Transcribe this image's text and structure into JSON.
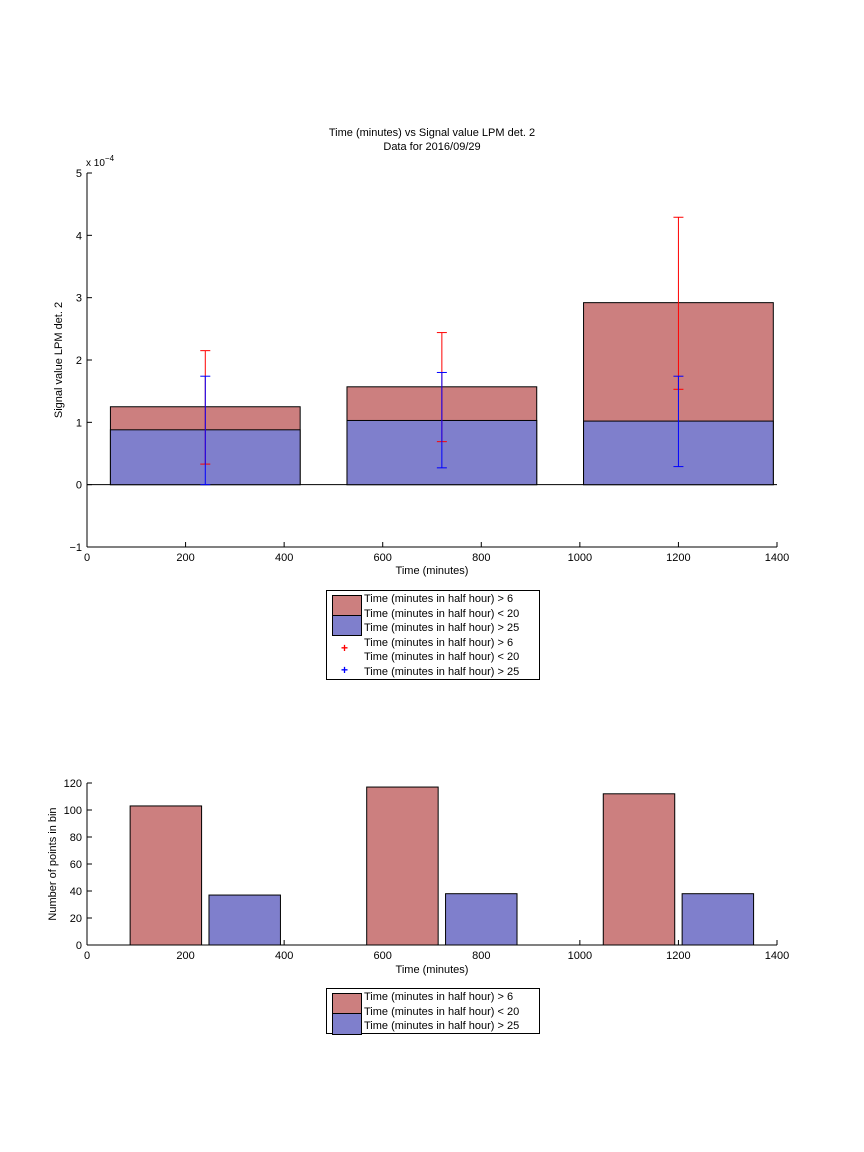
{
  "chart_data": [
    {
      "type": "bar",
      "title": "Time (minutes) vs Signal value LPM det. 2",
      "subtitle": "Data for 2016/09/29",
      "xlabel": "Time (minutes)",
      "ylabel": "Signal value LPM det. 2",
      "y_exponent_label": "x 10",
      "y_exponent_power": "−4",
      "xlim": [
        0,
        1400
      ],
      "ylim": [
        -1,
        5
      ],
      "x_ticks": [
        "0",
        "200",
        "400",
        "600",
        "800",
        "1000",
        "1200",
        "1400"
      ],
      "y_ticks": [
        "−1",
        "0",
        "1",
        "2",
        "3",
        "4",
        "5"
      ],
      "bar_centers": [
        240,
        720,
        1200
      ],
      "bar_width": 385,
      "series": [
        {
          "name": "Time (minutes in half hour) > 6\nTime (minutes in half hour) < 20",
          "color": "#cc7f7f",
          "values": [
            1.25,
            1.57,
            2.92
          ],
          "err_low": [
            0.33,
            0.69,
            1.53
          ],
          "err_high": [
            2.15,
            2.44,
            4.29
          ],
          "err_color": "#ff0000"
        },
        {
          "name": "Time (minutes in half hour) > 25",
          "color": "#7f7fcc",
          "values": [
            0.88,
            1.03,
            1.02
          ],
          "err_low": [
            0.0,
            0.27,
            0.29
          ],
          "err_high": [
            1.74,
            1.8,
            1.74
          ],
          "err_color": "#0000ff"
        }
      ],
      "legend": [
        {
          "lines": [
            "Time (minutes in half hour) > 6",
            "Time (minutes in half hour) < 20"
          ],
          "marker": "patch",
          "color": "#cc7f7f"
        },
        {
          "lines": [
            "Time (minutes in half hour) > 25"
          ],
          "marker": "patch",
          "color": "#7f7fcc"
        },
        {
          "lines": [
            "Time (minutes in half hour) > 6",
            "Time (minutes in half hour) < 20"
          ],
          "marker": "plus",
          "color": "#ff0000"
        },
        {
          "lines": [
            "Time (minutes in half hour) > 25"
          ],
          "marker": "plus",
          "color": "#0000ff"
        }
      ]
    },
    {
      "type": "bar",
      "xlabel": "Time (minutes)",
      "ylabel": "Number of points in bin",
      "xlim": [
        0,
        1400
      ],
      "ylim": [
        0,
        120
      ],
      "x_ticks": [
        "0",
        "200",
        "400",
        "600",
        "800",
        "1000",
        "1200",
        "1400"
      ],
      "y_ticks": [
        "0",
        "20",
        "40",
        "60",
        "80",
        "100",
        "120"
      ],
      "bar_width": 145,
      "series": [
        {
          "name": "Time (minutes in half hour) > 6\nTime (minutes in half hour) < 20",
          "color": "#cc7f7f",
          "x": [
            160,
            640,
            1120
          ],
          "values": [
            103,
            117,
            112
          ]
        },
        {
          "name": "Time (minutes in half hour) > 25",
          "color": "#7f7fcc",
          "x": [
            320,
            800,
            1280
          ],
          "values": [
            37,
            38,
            38
          ]
        }
      ],
      "legend": [
        {
          "lines": [
            "Time (minutes in half hour) > 6",
            "Time (minutes in half hour) < 20"
          ],
          "marker": "patch",
          "color": "#cc7f7f"
        },
        {
          "lines": [
            "Time (minutes in half hour) > 25"
          ],
          "marker": "patch",
          "color": "#7f7fcc"
        }
      ]
    }
  ]
}
